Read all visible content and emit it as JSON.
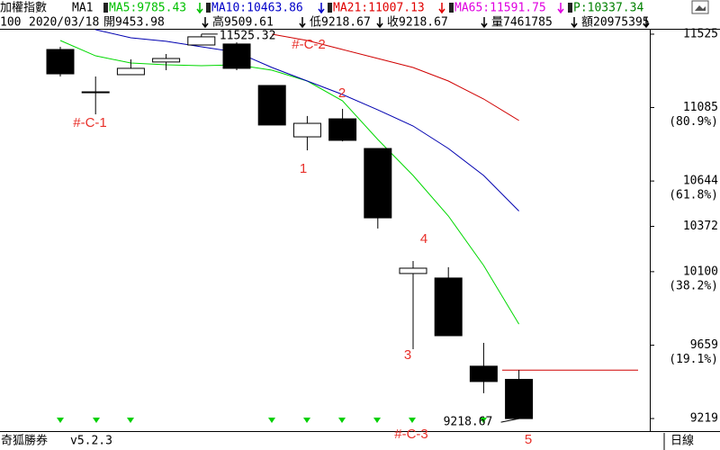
{
  "header": {
    "line1": [
      {
        "text": "加權指數",
        "color": "#000000"
      },
      {
        "text": "MA1",
        "color": "#000000"
      },
      {
        "text": "MA5:9785.43",
        "color": "#00c000"
      },
      {
        "text": "MA10:10463.86",
        "color": "#0000c8"
      },
      {
        "text": "MA21:11007.13",
        "color": "#e00000"
      },
      {
        "text": "MA65:11591.75",
        "color": "#e000e0"
      },
      {
        "text": "P:10337.34",
        "color": "#008000"
      }
    ],
    "line2": [
      "100",
      "2020/03/18",
      "開9453.98",
      "高9509.61",
      "低9218.67",
      "收9218.67",
      "量7461785",
      "額20975395"
    ]
  },
  "chart_data": {
    "type": "candlestick",
    "open": [
      11433,
      11179,
      11282,
      11358,
      11460,
      11466,
      11217,
      10909,
      11017,
      10839,
      10089,
      10062,
      9533,
      9453.98
    ],
    "high": [
      11449,
      11271,
      11374,
      11406,
      11525.32,
      11476,
      11217,
      11034,
      11077,
      10839,
      10164,
      10127,
      9673,
      9509.61
    ],
    "low": [
      11271,
      11044,
      11282,
      11309,
      11460,
      11309,
      10980,
      10828,
      10882,
      10359,
      9635,
      9716,
      9371,
      9218.67
    ],
    "close": [
      11287,
      11179,
      11320,
      11379,
      11509,
      11320,
      10980,
      10990,
      10888,
      10423,
      10121,
      9716,
      9441,
      9218.67
    ],
    "high_label": "11525.32",
    "low_label": "9218.67",
    "series": [
      {
        "name": "MA5",
        "color": "#00d800",
        "values": [
          11487,
          11395,
          11352,
          11341,
          11336,
          11341,
          11309,
          11244,
          11125,
          10893,
          10677,
          10434,
          10137,
          9785.43
        ]
      },
      {
        "name": "MA10",
        "color": "#0000b0",
        "values": [
          null,
          11552,
          11503,
          11482,
          11449,
          11417,
          11325,
          11244,
          11163,
          11071,
          10974,
          10839,
          10677,
          10463.86
        ]
      },
      {
        "name": "MA21",
        "color": "#d00000",
        "values": [
          null,
          null,
          null,
          null,
          null,
          null,
          11525,
          11487,
          11433,
          11379,
          11325,
          11244,
          11136,
          11007.13
        ]
      }
    ],
    "ref_line": 9509.61,
    "ylim": [
      9149,
      11568
    ],
    "yticks": [
      11525,
      11085,
      10644,
      10372,
      10100,
      9659,
      9219
    ],
    "pct_ticks": [
      {
        "value": 11085,
        "label": "(80.9%)"
      },
      {
        "value": 10644,
        "label": "(61.8%)"
      },
      {
        "value": 10100,
        "label": "(38.2%)"
      },
      {
        "value": 9659,
        "label": "(19.1%)"
      }
    ],
    "annotations": [
      "#-C-1",
      "#-C-2",
      "2",
      "1",
      "4",
      "3",
      "#-C-3",
      "5"
    ]
  },
  "footer": {
    "app": "奇狐勝券",
    "version": "v5.2.3",
    "period": "日線"
  }
}
